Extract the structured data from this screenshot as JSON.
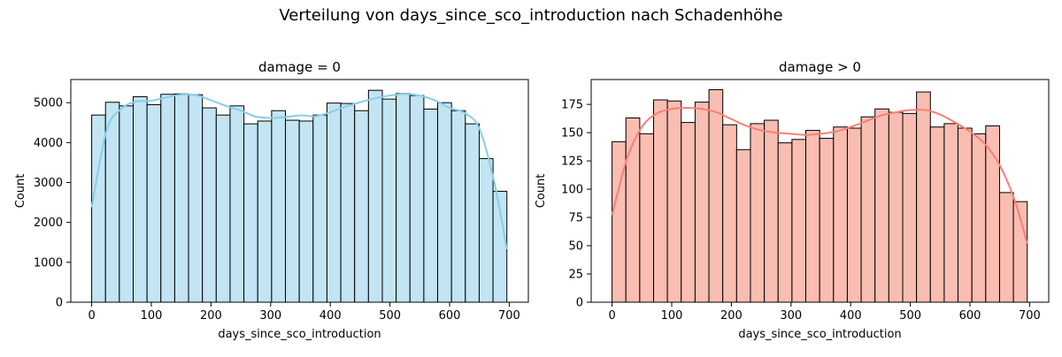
{
  "figure": {
    "suptitle": "Verteilung von days_since_sco_introduction nach Schadenhöhe"
  },
  "chart_data": [
    {
      "type": "bar",
      "subtype": "histogram_with_kde",
      "title": "damage = 0",
      "xlabel": "days_since_sco_introduction",
      "ylabel": "Count",
      "xlim": [
        -35,
        732
      ],
      "ylim": [
        0,
        5580
      ],
      "xticks": [
        0,
        100,
        200,
        300,
        400,
        500,
        600,
        700
      ],
      "yticks": [
        0,
        1000,
        2000,
        3000,
        4000,
        5000
      ],
      "grid": false,
      "bar_color": "#c3e4f2",
      "line_color": "#87ceeb",
      "bins": [
        [
          0,
          23.2
        ],
        [
          23.2,
          46.4
        ],
        [
          46.4,
          69.6
        ],
        [
          69.6,
          92.8
        ],
        [
          92.8,
          116
        ],
        [
          116,
          139.2
        ],
        [
          139.2,
          162.4
        ],
        [
          162.4,
          185.6
        ],
        [
          185.6,
          208.8
        ],
        [
          208.8,
          232
        ],
        [
          232,
          255.2
        ],
        [
          255.2,
          278.4
        ],
        [
          278.4,
          301.6
        ],
        [
          301.6,
          324.8
        ],
        [
          324.8,
          348
        ],
        [
          348,
          371.2
        ],
        [
          371.2,
          394.4
        ],
        [
          394.4,
          417.6
        ],
        [
          417.6,
          440.8
        ],
        [
          440.8,
          464
        ],
        [
          464,
          487.2
        ],
        [
          487.2,
          510.4
        ],
        [
          510.4,
          533.6
        ],
        [
          533.6,
          556.8
        ],
        [
          556.8,
          580
        ],
        [
          580,
          603.2
        ],
        [
          603.2,
          626.4
        ],
        [
          626.4,
          649.6
        ],
        [
          649.6,
          672.8
        ],
        [
          672.8,
          696
        ]
      ],
      "values": [
        4690,
        5010,
        4920,
        5150,
        4950,
        5210,
        5220,
        5200,
        4870,
        4690,
        4920,
        4470,
        4540,
        4800,
        4560,
        4540,
        4690,
        4990,
        4980,
        4800,
        5310,
        5090,
        5230,
        5180,
        4840,
        5000,
        4800,
        4470,
        3600,
        2780
      ],
      "kde": {
        "x": [
          0,
          25,
          50,
          75,
          100,
          125,
          150,
          175,
          200,
          225,
          250,
          275,
          300,
          325,
          350,
          375,
          400,
          425,
          450,
          475,
          500,
          525,
          550,
          575,
          600,
          625,
          650,
          675,
          696
        ],
        "y": [
          2380,
          4300,
          4850,
          5030,
          5050,
          5130,
          5200,
          5190,
          5060,
          4920,
          4800,
          4650,
          4620,
          4640,
          4680,
          4660,
          4760,
          4900,
          5010,
          5110,
          5180,
          5220,
          5180,
          5060,
          4870,
          4740,
          4350,
          3000,
          1330
        ]
      }
    },
    {
      "type": "bar",
      "subtype": "histogram_with_kde",
      "title": "damage > 0",
      "xlabel": "days_since_sco_introduction",
      "ylabel": "Count",
      "xlim": [
        -35,
        732
      ],
      "ylim": [
        0,
        197
      ],
      "xticks": [
        0,
        100,
        200,
        300,
        400,
        500,
        600,
        700
      ],
      "yticks": [
        0,
        25,
        50,
        75,
        100,
        125,
        150,
        175
      ],
      "grid": false,
      "bar_color": "#f9bdb2",
      "line_color": "#fa8072",
      "bins": [
        [
          0,
          23.2
        ],
        [
          23.2,
          46.4
        ],
        [
          46.4,
          69.6
        ],
        [
          69.6,
          92.8
        ],
        [
          92.8,
          116
        ],
        [
          116,
          139.2
        ],
        [
          139.2,
          162.4
        ],
        [
          162.4,
          185.6
        ],
        [
          185.6,
          208.8
        ],
        [
          208.8,
          232
        ],
        [
          232,
          255.2
        ],
        [
          255.2,
          278.4
        ],
        [
          278.4,
          301.6
        ],
        [
          301.6,
          324.8
        ],
        [
          324.8,
          348
        ],
        [
          348,
          371.2
        ],
        [
          371.2,
          394.4
        ],
        [
          394.4,
          417.6
        ],
        [
          417.6,
          440.8
        ],
        [
          440.8,
          464
        ],
        [
          464,
          487.2
        ],
        [
          487.2,
          510.4
        ],
        [
          510.4,
          533.6
        ],
        [
          533.6,
          556.8
        ],
        [
          556.8,
          580
        ],
        [
          580,
          603.2
        ],
        [
          603.2,
          626.4
        ],
        [
          626.4,
          649.6
        ],
        [
          649.6,
          672.8
        ],
        [
          672.8,
          696
        ]
      ],
      "values": [
        142,
        163,
        149,
        179,
        178,
        159,
        177,
        188,
        157,
        135,
        158,
        161,
        141,
        144,
        152,
        145,
        155,
        154,
        164,
        171,
        168,
        167,
        186,
        155,
        158,
        154,
        149,
        156,
        97,
        89
      ],
      "kde": {
        "x": [
          0,
          25,
          50,
          75,
          100,
          125,
          150,
          175,
          200,
          225,
          250,
          275,
          300,
          325,
          350,
          375,
          400,
          425,
          450,
          475,
          500,
          525,
          550,
          575,
          600,
          625,
          650,
          675,
          696
        ],
        "y": [
          77,
          127,
          155,
          167,
          171,
          172,
          171,
          168,
          162,
          156,
          152,
          150,
          149,
          148,
          149,
          151,
          155,
          160,
          165,
          168,
          170,
          170,
          166,
          159,
          151,
          140,
          121,
          90,
          52
        ]
      }
    }
  ]
}
